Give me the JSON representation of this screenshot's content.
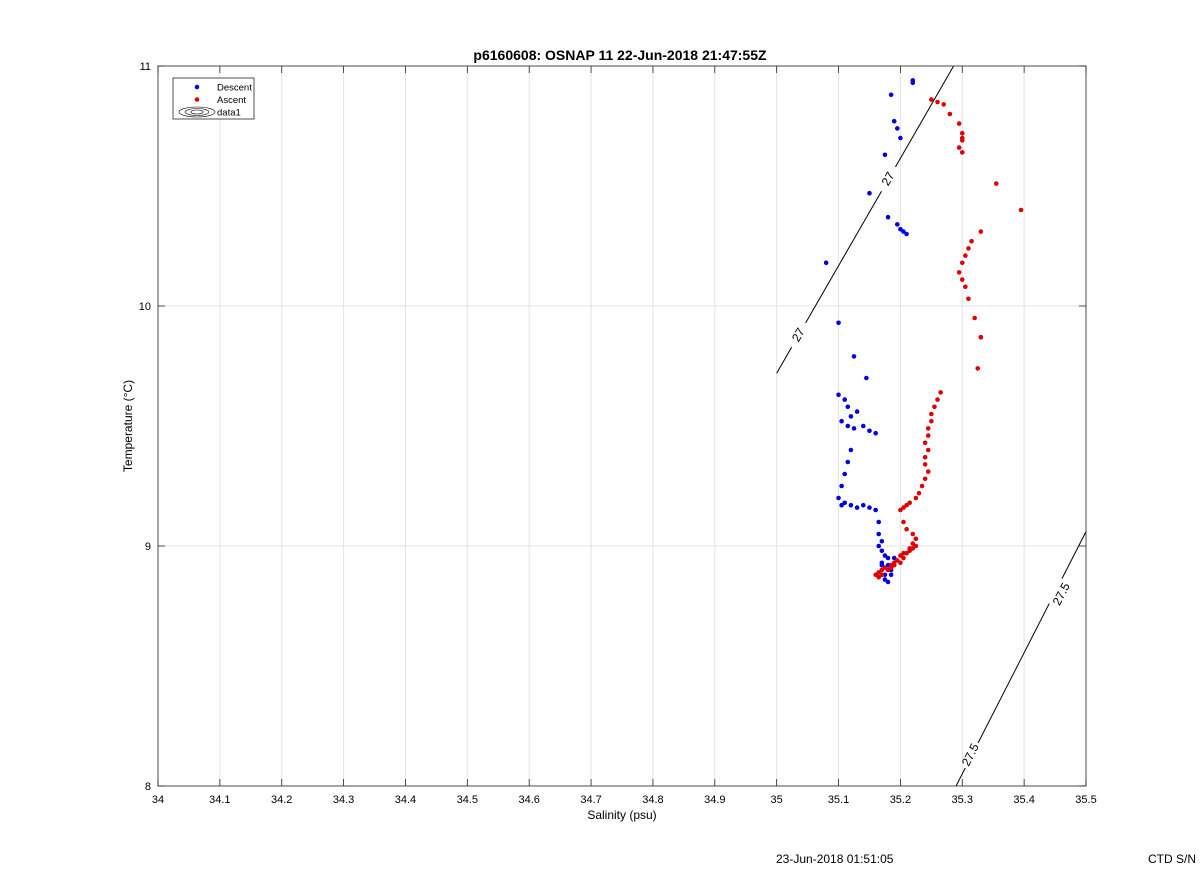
{
  "chart_data": {
    "type": "scatter",
    "title": "p6160608: OSNAP 11 22-Jun-2018 21:47:55Z",
    "xlabel": "Salinity (psu)",
    "ylabel": "Temperature (°C)",
    "xlim": [
      34,
      35.5
    ],
    "ylim": [
      8,
      11
    ],
    "x_ticks": [
      34,
      34.1,
      34.2,
      34.3,
      34.4,
      34.5,
      34.6,
      34.7,
      34.8,
      34.9,
      35,
      35.1,
      35.2,
      35.3,
      35.4,
      35.5
    ],
    "x_tick_labels": [
      "34",
      "34.1",
      "34.2",
      "34.3",
      "34.4",
      "34.5",
      "34.6",
      "34.7",
      "34.8",
      "34.9",
      "35",
      "35.1",
      "35.2",
      "35.3",
      "35.4",
      "35.5"
    ],
    "y_ticks": [
      8,
      9,
      10,
      11
    ],
    "y_tick_labels": [
      "8",
      "9",
      "10",
      "11"
    ],
    "grid": true,
    "legend_position": "top-left",
    "legend": [
      {
        "label": "Descent",
        "color": "#0000e0",
        "symbol": "dot"
      },
      {
        "label": "Ascent",
        "color": "#e00000",
        "symbol": "dot"
      },
      {
        "label": "data1",
        "color": "#000000",
        "symbol": "contour"
      }
    ],
    "series": [
      {
        "name": "Descent",
        "color": "#0000e0",
        "x": [
          35.22,
          35.22,
          35.185,
          35.19,
          35.195,
          35.2,
          35.175,
          35.15,
          35.18,
          35.195,
          35.2,
          35.205,
          35.21,
          35.08,
          35.1,
          35.125,
          35.145,
          35.1,
          35.11,
          35.115,
          35.13,
          35.12,
          35.105,
          35.115,
          35.125,
          35.14,
          35.15,
          35.16,
          35.12,
          35.115,
          35.11,
          35.105,
          35.1,
          35.11,
          35.105,
          35.12,
          35.13,
          35.14,
          35.15,
          35.16,
          35.165,
          35.165,
          35.17,
          35.165,
          35.17,
          35.175,
          35.18,
          35.17,
          35.185,
          35.19,
          35.18,
          35.175,
          35.175,
          35.17,
          35.185,
          35.18
        ],
        "y": [
          10.94,
          10.93,
          10.88,
          10.77,
          10.74,
          10.7,
          10.63,
          10.47,
          10.37,
          10.34,
          10.32,
          10.31,
          10.3,
          10.18,
          9.93,
          9.79,
          9.7,
          9.63,
          9.61,
          9.58,
          9.56,
          9.54,
          9.52,
          9.5,
          9.49,
          9.5,
          9.48,
          9.47,
          9.4,
          9.35,
          9.3,
          9.25,
          9.2,
          9.18,
          9.17,
          9.17,
          9.16,
          9.17,
          9.16,
          9.15,
          9.1,
          9.05,
          9.02,
          9.0,
          8.98,
          8.96,
          8.95,
          8.93,
          8.9,
          8.95,
          8.92,
          8.88,
          8.86,
          8.92,
          8.88,
          8.85
        ]
      },
      {
        "name": "Ascent",
        "color": "#e00000",
        "x": [
          35.25,
          35.26,
          35.27,
          35.28,
          35.295,
          35.3,
          35.3,
          35.295,
          35.3,
          35.3,
          35.355,
          35.395,
          35.33,
          35.315,
          35.31,
          35.305,
          35.3,
          35.295,
          35.3,
          35.305,
          35.31,
          35.32,
          35.33,
          35.33,
          35.325,
          35.265,
          35.26,
          35.255,
          35.25,
          35.25,
          35.245,
          35.245,
          35.24,
          35.245,
          35.24,
          35.24,
          35.245,
          35.24,
          35.235,
          35.23,
          35.225,
          35.215,
          35.21,
          35.205,
          35.2,
          35.205,
          35.21,
          35.22,
          35.225,
          35.225,
          35.22,
          35.215,
          35.205,
          35.2,
          35.195,
          35.19,
          35.185,
          35.175,
          35.17,
          35.165,
          35.16,
          35.165,
          35.17,
          35.18,
          35.185,
          35.19,
          35.2,
          35.205,
          35.21,
          35.215,
          35.22,
          35.225
        ],
        "y": [
          10.86,
          10.85,
          10.84,
          10.8,
          10.76,
          10.72,
          10.69,
          10.66,
          10.64,
          10.7,
          10.51,
          10.4,
          10.31,
          10.27,
          10.24,
          10.21,
          10.18,
          10.14,
          10.11,
          10.08,
          10.03,
          9.95,
          9.87,
          9.87,
          9.74,
          9.64,
          9.61,
          9.58,
          9.55,
          9.52,
          9.49,
          9.46,
          9.43,
          9.4,
          9.37,
          9.34,
          9.31,
          9.28,
          9.25,
          9.22,
          9.2,
          9.18,
          9.17,
          9.16,
          9.15,
          9.1,
          9.07,
          9.05,
          9.03,
          9.0,
          8.99,
          8.98,
          8.97,
          8.96,
          8.94,
          8.93,
          8.92,
          8.91,
          8.9,
          8.89,
          8.88,
          8.87,
          8.88,
          8.9,
          8.91,
          8.92,
          8.93,
          8.95,
          8.97,
          8.99,
          9.01,
          9.03
        ]
      }
    ],
    "contours": [
      {
        "label": "27",
        "color": "#000000",
        "points": [
          [
            35.0,
            9.72
          ],
          [
            35.286,
            11.0
          ]
        ],
        "label_positions": [
          [
            35.035,
            9.88
          ],
          [
            35.18,
            10.53
          ]
        ]
      },
      {
        "label": "27.5",
        "color": "#000000",
        "points": [
          [
            35.29,
            8.0
          ],
          [
            35.5,
            9.06
          ]
        ],
        "label_positions": [
          [
            35.313,
            8.13
          ],
          [
            35.46,
            8.8
          ]
        ]
      }
    ]
  },
  "footer": {
    "timestamp": "23-Jun-2018 01:51:05",
    "serial": "CTD S/N"
  }
}
